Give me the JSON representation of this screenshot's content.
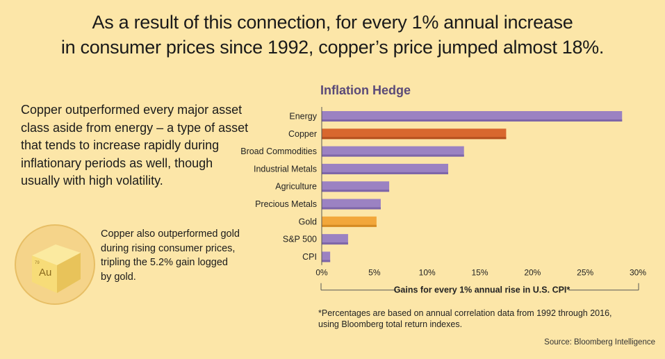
{
  "headline": {
    "line1": "As a result of this connection, for every 1% annual increase",
    "line2": "in consumer prices since 1992, copper’s price jumped almost 18%."
  },
  "intro_text": "Copper outperformed every major asset class aside from energy – a type of asset that tends to increase rapidly during inflationary periods as well, though usually with high volatility.",
  "gold_note": "Copper also outperformed gold during rising consumer prices, tripling the 5.2% gain logged by gold.",
  "gold_cube": {
    "symbol": "Au",
    "number": "79",
    "icon": "gold-cube-icon"
  },
  "colors": {
    "background": "#FCE6A8",
    "purple": "#9B82C2",
    "purple_dark": "#7E66A8",
    "copper": "#D8672E",
    "copper_dark": "#B5501F",
    "gold": "#F2A73B",
    "gold_dark": "#D48A22",
    "title": "#5A4A78"
  },
  "chart_data": {
    "type": "bar",
    "orientation": "horizontal",
    "title": "Inflation Hedge",
    "categories": [
      "Energy",
      "Copper",
      "Broad Commodities",
      "Industrial Metals",
      "Agriculture",
      "Precious Metals",
      "Gold",
      "S&P 500",
      "CPI"
    ],
    "values": [
      28.5,
      17.5,
      13.5,
      12.0,
      6.4,
      5.6,
      5.2,
      2.5,
      0.8
    ],
    "highlight": {
      "Copper": "copper",
      "Gold": "gold"
    },
    "xlim": [
      0,
      30
    ],
    "xticks": [
      0,
      5,
      10,
      15,
      20,
      25,
      30
    ],
    "xtick_labels": [
      "0%",
      "5%",
      "10%",
      "15%",
      "20%",
      "25%",
      "30%"
    ],
    "xlabel": "Gains for every 1% annual rise in U.S. CPI*",
    "grid": false
  },
  "footnote": {
    "line1": "*Percentages are based on annual correlation data from 1992 through 2016,",
    "line2": "using Bloomberg total return indexes."
  },
  "source": "Source: Bloomberg Intelligence"
}
